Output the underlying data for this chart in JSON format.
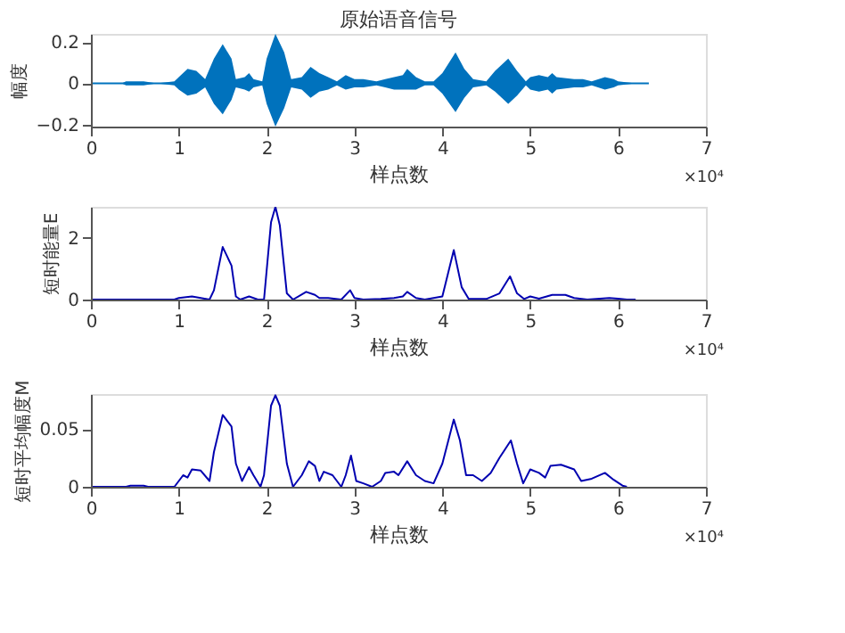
{
  "chart_data": [
    {
      "type": "line",
      "title": "原始语音信号",
      "xlabel": "样点数",
      "ylabel": "幅度",
      "xlim": [
        0,
        7
      ],
      "ylim": [
        -0.21,
        0.24
      ],
      "xticks": [
        0,
        1,
        2,
        3,
        4,
        5,
        6,
        7
      ],
      "yticks": [
        -0.2,
        0,
        0.2
      ],
      "grid": false,
      "annotations": [
        "×10⁴"
      ],
      "x": [
        0,
        0.35,
        0.4,
        0.6,
        0.75,
        0.95,
        1.0,
        1.1,
        1.2,
        1.3,
        1.4,
        1.5,
        1.6,
        1.65,
        1.75,
        1.8,
        1.85,
        1.95,
        2.0,
        2.1,
        2.2,
        2.28,
        2.4,
        2.5,
        2.6,
        2.7,
        2.8,
        2.9,
        3.0,
        3.1,
        3.25,
        3.35,
        3.45,
        3.55,
        3.6,
        3.7,
        3.8,
        3.9,
        4.0,
        4.15,
        4.25,
        4.35,
        4.5,
        4.6,
        4.75,
        4.85,
        4.95,
        5.0,
        5.1,
        5.2,
        5.25,
        5.3,
        5.5,
        5.6,
        5.7,
        5.85,
        5.95,
        6.0,
        6.2,
        6.35
      ],
      "series": [
        {
          "color": "#0072bd",
          "values": [
            0,
            0,
            0,
            0,
            0,
            0,
            0,
            0,
            0,
            0,
            0,
            0,
            0,
            0,
            0,
            0,
            0,
            0,
            0,
            0,
            0,
            0,
            0,
            0,
            0,
            0,
            0,
            0,
            0,
            0,
            0,
            0,
            0,
            0,
            0,
            0,
            0,
            0,
            0,
            0,
            0,
            0,
            0,
            0,
            0,
            0,
            0,
            0,
            0,
            0,
            0,
            0,
            0,
            0,
            0,
            0,
            0,
            0,
            0,
            0
          ],
          "upper": [
            0,
            0,
            0.01,
            0.01,
            0,
            0.01,
            0.03,
            0.07,
            0.06,
            0.02,
            0.12,
            0.19,
            0.12,
            0.02,
            0.03,
            0.05,
            0.02,
            0.01,
            0.12,
            0.24,
            0.15,
            0.02,
            0.03,
            0.08,
            0.05,
            0.03,
            0.01,
            0.04,
            0.02,
            0.02,
            0.01,
            0.02,
            0.03,
            0.04,
            0.07,
            0.03,
            0.01,
            0.01,
            0.05,
            0.15,
            0.07,
            0.02,
            0.01,
            0.06,
            0.12,
            0.06,
            0.01,
            0.03,
            0.04,
            0.03,
            0.05,
            0.03,
            0.02,
            0.02,
            0.01,
            0.03,
            0.02,
            0.01,
            0,
            0
          ],
          "lower": [
            0,
            0,
            -0.01,
            -0.01,
            0,
            -0.01,
            -0.03,
            -0.06,
            -0.05,
            -0.02,
            -0.1,
            -0.15,
            -0.08,
            -0.02,
            -0.03,
            -0.04,
            -0.02,
            -0.01,
            -0.1,
            -0.21,
            -0.12,
            -0.02,
            -0.03,
            -0.07,
            -0.04,
            -0.03,
            -0.01,
            -0.03,
            -0.02,
            -0.02,
            -0.01,
            -0.02,
            -0.03,
            -0.03,
            -0.03,
            -0.03,
            -0.01,
            -0.01,
            -0.05,
            -0.14,
            -0.07,
            -0.02,
            -0.01,
            -0.04,
            -0.1,
            -0.06,
            -0.01,
            -0.03,
            -0.04,
            -0.03,
            -0.05,
            -0.03,
            -0.02,
            -0.02,
            -0.01,
            -0.03,
            -0.02,
            -0.01,
            0,
            0
          ]
        }
      ]
    },
    {
      "type": "line",
      "xlabel": "样点数",
      "ylabel": "短时能量E",
      "xlim": [
        0,
        7
      ],
      "ylim": [
        0,
        3
      ],
      "xticks": [
        0,
        1,
        2,
        3,
        4,
        5,
        6,
        7
      ],
      "yticks": [
        0,
        2
      ],
      "grid": false,
      "annotations": [
        "×10⁴"
      ],
      "x": [
        0,
        0.95,
        1.0,
        1.15,
        1.25,
        1.35,
        1.4,
        1.5,
        1.6,
        1.65,
        1.7,
        1.8,
        1.9,
        1.97,
        2.05,
        2.1,
        2.15,
        2.23,
        2.3,
        2.45,
        2.55,
        2.6,
        2.7,
        2.85,
        2.95,
        3.0,
        3.1,
        3.3,
        3.45,
        3.55,
        3.6,
        3.7,
        3.8,
        4.0,
        4.13,
        4.22,
        4.3,
        4.5,
        4.65,
        4.77,
        4.85,
        4.93,
        5.0,
        5.1,
        5.25,
        5.4,
        5.5,
        5.65,
        5.9,
        6.0,
        6.1,
        6.2
      ],
      "series": [
        {
          "color": "#0000b0",
          "values": [
            0,
            0,
            0.05,
            0.1,
            0.05,
            0,
            0.3,
            1.7,
            1.1,
            0.1,
            0,
            0.1,
            0,
            0,
            2.5,
            3.0,
            2.4,
            0.2,
            0,
            0.25,
            0.15,
            0.05,
            0.05,
            0,
            0.3,
            0.05,
            0,
            0.02,
            0.05,
            0.1,
            0.25,
            0.05,
            0,
            0.1,
            1.6,
            0.4,
            0.02,
            0.02,
            0.2,
            0.75,
            0.2,
            0.02,
            0.1,
            0.03,
            0.15,
            0.15,
            0.05,
            0,
            0.05,
            0.03,
            0,
            0
          ]
        }
      ]
    },
    {
      "type": "line",
      "xlabel": "样点数",
      "ylabel": "短时平均幅度M",
      "xlim": [
        0,
        7
      ],
      "ylim": [
        0,
        0.08
      ],
      "xticks": [
        0,
        1,
        2,
        3,
        4,
        5,
        6,
        7
      ],
      "yticks": [
        0,
        0.05
      ],
      "grid": false,
      "annotations": [
        "×10⁴"
      ],
      "x": [
        0,
        0.4,
        0.45,
        0.6,
        0.65,
        0.95,
        1.05,
        1.1,
        1.15,
        1.25,
        1.35,
        1.4,
        1.5,
        1.6,
        1.65,
        1.72,
        1.8,
        1.85,
        1.93,
        1.97,
        2.05,
        2.1,
        2.15,
        2.23,
        2.3,
        2.4,
        2.48,
        2.55,
        2.6,
        2.65,
        2.75,
        2.85,
        2.9,
        2.96,
        3.02,
        3.1,
        3.2,
        3.3,
        3.35,
        3.45,
        3.5,
        3.6,
        3.7,
        3.8,
        3.9,
        4.0,
        4.13,
        4.2,
        4.27,
        4.35,
        4.45,
        4.55,
        4.65,
        4.78,
        4.85,
        4.92,
        5.0,
        5.1,
        5.17,
        5.23,
        5.35,
        5.5,
        5.58,
        5.7,
        5.85,
        5.95,
        6.05,
        6.1
      ],
      "series": [
        {
          "color": "#0000b0",
          "values": [
            0,
            0,
            0.001,
            0.001,
            0,
            0,
            0.01,
            0.008,
            0.015,
            0.014,
            0.005,
            0.03,
            0.062,
            0.052,
            0.02,
            0.005,
            0.017,
            0.01,
            0,
            0.01,
            0.07,
            0.079,
            0.07,
            0.02,
            0,
            0.01,
            0.022,
            0.018,
            0.005,
            0.013,
            0.01,
            0,
            0.01,
            0.027,
            0.005,
            0.003,
            0,
            0.005,
            0.012,
            0.013,
            0.01,
            0.022,
            0.01,
            0.005,
            0.003,
            0.02,
            0.058,
            0.04,
            0.01,
            0.01,
            0.005,
            0.012,
            0.025,
            0.04,
            0.02,
            0.003,
            0.015,
            0.012,
            0.008,
            0.018,
            0.019,
            0.015,
            0.005,
            0.007,
            0.012,
            0.006,
            0.001,
            0
          ]
        }
      ]
    }
  ]
}
